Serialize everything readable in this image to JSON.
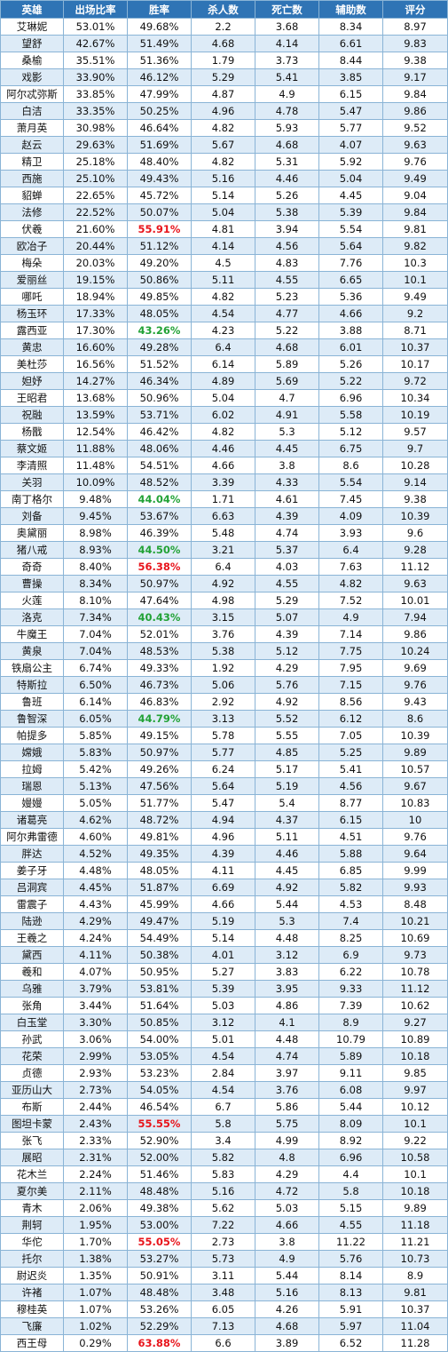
{
  "headers": [
    "英雄",
    "出场比率",
    "胜率",
    "杀人数",
    "死亡数",
    "辅助数",
    "评分"
  ],
  "colors": {
    "header_bg": "#2f74b5",
    "stripe": "#ddebf7",
    "high_winrate": "#e8141b",
    "low_winrate": "#22a236"
  },
  "rows": [
    {
      "cells": [
        "艾琳妮",
        "53.01%",
        "49.68%",
        "2.2",
        "3.68",
        "8.34",
        "8.97"
      ]
    },
    {
      "cells": [
        "望舒",
        "42.67%",
        "51.49%",
        "4.68",
        "4.14",
        "6.61",
        "9.83"
      ]
    },
    {
      "cells": [
        "桑榆",
        "35.51%",
        "51.36%",
        "1.79",
        "3.73",
        "8.44",
        "9.38"
      ]
    },
    {
      "cells": [
        "戏影",
        "33.90%",
        "46.12%",
        "5.29",
        "5.41",
        "3.85",
        "9.17"
      ]
    },
    {
      "cells": [
        "阿尔忒弥斯",
        "33.85%",
        "47.99%",
        "4.87",
        "4.9",
        "6.15",
        "9.84"
      ]
    },
    {
      "cells": [
        "白洁",
        "33.35%",
        "50.25%",
        "4.96",
        "4.78",
        "5.47",
        "9.86"
      ]
    },
    {
      "cells": [
        "萧月英",
        "30.98%",
        "46.64%",
        "4.82",
        "5.93",
        "5.77",
        "9.52"
      ]
    },
    {
      "cells": [
        "赵云",
        "29.63%",
        "51.69%",
        "5.67",
        "4.68",
        "4.07",
        "9.63"
      ]
    },
    {
      "cells": [
        "精卫",
        "25.18%",
        "48.40%",
        "4.82",
        "5.31",
        "5.92",
        "9.76"
      ]
    },
    {
      "cells": [
        "西施",
        "25.10%",
        "49.43%",
        "5.16",
        "4.46",
        "5.04",
        "9.49"
      ]
    },
    {
      "cells": [
        "貂蝉",
        "22.65%",
        "45.72%",
        "5.14",
        "5.26",
        "4.45",
        "9.04"
      ]
    },
    {
      "cells": [
        "法修",
        "22.52%",
        "50.07%",
        "5.04",
        "5.38",
        "5.39",
        "9.84"
      ]
    },
    {
      "cells": [
        "伏羲",
        "21.60%",
        "55.91%",
        "4.81",
        "3.94",
        "5.54",
        "9.81"
      ],
      "hl": "high"
    },
    {
      "cells": [
        "欧冶子",
        "20.44%",
        "51.12%",
        "4.14",
        "4.56",
        "5.64",
        "9.82"
      ]
    },
    {
      "cells": [
        "梅朵",
        "20.03%",
        "49.20%",
        "4.5",
        "4.83",
        "7.76",
        "10.3"
      ]
    },
    {
      "cells": [
        "爱丽丝",
        "19.15%",
        "50.86%",
        "5.11",
        "4.55",
        "6.65",
        "10.1"
      ]
    },
    {
      "cells": [
        "哪吒",
        "18.94%",
        "49.85%",
        "4.82",
        "5.23",
        "5.36",
        "9.49"
      ]
    },
    {
      "cells": [
        "杨玉环",
        "17.33%",
        "48.05%",
        "4.54",
        "4.77",
        "4.66",
        "9.2"
      ]
    },
    {
      "cells": [
        "露西亚",
        "17.30%",
        "43.26%",
        "4.23",
        "5.22",
        "3.88",
        "8.71"
      ],
      "hl": "low"
    },
    {
      "cells": [
        "黄忠",
        "16.60%",
        "49.28%",
        "6.4",
        "4.68",
        "6.01",
        "10.37"
      ]
    },
    {
      "cells": [
        "美杜莎",
        "16.56%",
        "51.52%",
        "6.14",
        "5.89",
        "5.26",
        "10.17"
      ]
    },
    {
      "cells": [
        "妲妤",
        "14.27%",
        "46.34%",
        "4.89",
        "5.69",
        "5.22",
        "9.72"
      ]
    },
    {
      "cells": [
        "王昭君",
        "13.68%",
        "50.96%",
        "5.04",
        "4.7",
        "6.96",
        "10.34"
      ]
    },
    {
      "cells": [
        "祝融",
        "13.59%",
        "53.71%",
        "6.02",
        "4.91",
        "5.58",
        "10.19"
      ]
    },
    {
      "cells": [
        "杨戬",
        "12.54%",
        "46.42%",
        "4.82",
        "5.3",
        "5.12",
        "9.57"
      ]
    },
    {
      "cells": [
        "蔡文姬",
        "11.88%",
        "48.06%",
        "4.46",
        "4.45",
        "6.75",
        "9.7"
      ]
    },
    {
      "cells": [
        "李清照",
        "11.48%",
        "54.51%",
        "4.66",
        "3.8",
        "8.6",
        "10.28"
      ]
    },
    {
      "cells": [
        "关羽",
        "10.09%",
        "48.52%",
        "3.39",
        "4.33",
        "5.54",
        "9.14"
      ]
    },
    {
      "cells": [
        "南丁格尔",
        "9.48%",
        "44.04%",
        "1.71",
        "4.61",
        "7.45",
        "9.38"
      ],
      "hl": "low"
    },
    {
      "cells": [
        "刘备",
        "9.45%",
        "53.67%",
        "6.63",
        "4.39",
        "4.09",
        "10.39"
      ]
    },
    {
      "cells": [
        "奥黛丽",
        "8.98%",
        "46.39%",
        "5.48",
        "4.74",
        "3.93",
        "9.6"
      ]
    },
    {
      "cells": [
        "猪八戒",
        "8.93%",
        "44.50%",
        "3.21",
        "5.37",
        "6.4",
        "9.28"
      ],
      "hl": "low"
    },
    {
      "cells": [
        "奇奇",
        "8.40%",
        "56.38%",
        "6.4",
        "4.03",
        "7.63",
        "11.12"
      ],
      "hl": "high"
    },
    {
      "cells": [
        "曹操",
        "8.34%",
        "50.97%",
        "4.92",
        "4.55",
        "4.82",
        "9.63"
      ]
    },
    {
      "cells": [
        "火莲",
        "8.10%",
        "47.64%",
        "4.98",
        "5.29",
        "7.52",
        "10.01"
      ]
    },
    {
      "cells": [
        "洛克",
        "7.34%",
        "40.43%",
        "3.15",
        "5.07",
        "4.9",
        "7.94"
      ],
      "hl": "low"
    },
    {
      "cells": [
        "牛魔王",
        "7.04%",
        "52.01%",
        "3.76",
        "4.39",
        "7.14",
        "9.86"
      ]
    },
    {
      "cells": [
        "黄泉",
        "7.04%",
        "48.53%",
        "5.38",
        "5.12",
        "7.75",
        "10.24"
      ]
    },
    {
      "cells": [
        "铁扇公主",
        "6.74%",
        "49.33%",
        "1.92",
        "4.29",
        "7.95",
        "9.69"
      ]
    },
    {
      "cells": [
        "特斯拉",
        "6.50%",
        "46.73%",
        "5.06",
        "5.76",
        "7.15",
        "9.76"
      ]
    },
    {
      "cells": [
        "鲁班",
        "6.14%",
        "46.83%",
        "2.92",
        "4.92",
        "8.56",
        "9.43"
      ]
    },
    {
      "cells": [
        "鲁智深",
        "6.05%",
        "44.79%",
        "3.13",
        "5.52",
        "6.12",
        "8.6"
      ],
      "hl": "low"
    },
    {
      "cells": [
        "帕提多",
        "5.85%",
        "49.15%",
        "5.78",
        "5.55",
        "7.05",
        "10.39"
      ]
    },
    {
      "cells": [
        "嫦娥",
        "5.83%",
        "50.97%",
        "5.77",
        "4.85",
        "5.25",
        "9.89"
      ]
    },
    {
      "cells": [
        "拉姆",
        "5.42%",
        "49.26%",
        "6.24",
        "5.17",
        "5.41",
        "10.57"
      ]
    },
    {
      "cells": [
        "瑞恩",
        "5.13%",
        "47.56%",
        "5.64",
        "5.19",
        "4.56",
        "9.67"
      ]
    },
    {
      "cells": [
        "嫚嫚",
        "5.05%",
        "51.77%",
        "5.47",
        "5.4",
        "8.77",
        "10.83"
      ]
    },
    {
      "cells": [
        "诸葛亮",
        "4.62%",
        "48.72%",
        "4.94",
        "4.37",
        "6.15",
        "10"
      ]
    },
    {
      "cells": [
        "阿尔弗雷德",
        "4.60%",
        "49.81%",
        "4.96",
        "5.11",
        "4.51",
        "9.76"
      ]
    },
    {
      "cells": [
        "胖达",
        "4.52%",
        "49.35%",
        "4.39",
        "4.46",
        "5.88",
        "9.64"
      ]
    },
    {
      "cells": [
        "姜子牙",
        "4.48%",
        "48.05%",
        "4.11",
        "4.45",
        "6.85",
        "9.99"
      ]
    },
    {
      "cells": [
        "吕洞宾",
        "4.45%",
        "51.87%",
        "6.69",
        "4.92",
        "5.82",
        "9.93"
      ]
    },
    {
      "cells": [
        "雷震子",
        "4.43%",
        "45.99%",
        "4.66",
        "5.44",
        "4.53",
        "8.48"
      ]
    },
    {
      "cells": [
        "陆逊",
        "4.29%",
        "49.47%",
        "5.19",
        "5.3",
        "7.4",
        "10.21"
      ]
    },
    {
      "cells": [
        "王羲之",
        "4.24%",
        "54.49%",
        "5.14",
        "4.48",
        "8.25",
        "10.69"
      ]
    },
    {
      "cells": [
        "黛西",
        "4.11%",
        "50.38%",
        "4.01",
        "3.12",
        "6.9",
        "9.73"
      ]
    },
    {
      "cells": [
        "羲和",
        "4.07%",
        "50.95%",
        "5.27",
        "3.83",
        "6.22",
        "10.78"
      ]
    },
    {
      "cells": [
        "乌雅",
        "3.79%",
        "53.81%",
        "5.39",
        "3.95",
        "9.33",
        "11.12"
      ]
    },
    {
      "cells": [
        "张角",
        "3.44%",
        "51.64%",
        "5.03",
        "4.86",
        "7.39",
        "10.62"
      ]
    },
    {
      "cells": [
        "白玉堂",
        "3.30%",
        "50.85%",
        "3.12",
        "4.1",
        "8.9",
        "9.27"
      ]
    },
    {
      "cells": [
        "孙武",
        "3.06%",
        "54.00%",
        "5.01",
        "4.48",
        "10.79",
        "10.89"
      ]
    },
    {
      "cells": [
        "花荣",
        "2.99%",
        "53.05%",
        "4.54",
        "4.74",
        "5.89",
        "10.18"
      ]
    },
    {
      "cells": [
        "贞德",
        "2.93%",
        "53.23%",
        "2.84",
        "3.97",
        "9.11",
        "9.85"
      ]
    },
    {
      "cells": [
        "亚历山大",
        "2.73%",
        "54.05%",
        "4.54",
        "3.76",
        "6.08",
        "9.97"
      ]
    },
    {
      "cells": [
        "布斯",
        "2.44%",
        "46.54%",
        "6.7",
        "5.86",
        "5.44",
        "10.12"
      ]
    },
    {
      "cells": [
        "图坦卡蒙",
        "2.43%",
        "55.55%",
        "5.8",
        "5.75",
        "8.09",
        "10.1"
      ],
      "hl": "high"
    },
    {
      "cells": [
        "张飞",
        "2.33%",
        "52.90%",
        "3.4",
        "4.99",
        "8.92",
        "9.22"
      ]
    },
    {
      "cells": [
        "展昭",
        "2.31%",
        "52.00%",
        "5.82",
        "4.8",
        "6.96",
        "10.58"
      ]
    },
    {
      "cells": [
        "花木兰",
        "2.24%",
        "51.46%",
        "5.83",
        "4.29",
        "4.4",
        "10.1"
      ]
    },
    {
      "cells": [
        "夏尔美",
        "2.11%",
        "48.48%",
        "5.16",
        "4.72",
        "5.8",
        "10.18"
      ]
    },
    {
      "cells": [
        "青木",
        "2.06%",
        "49.38%",
        "5.62",
        "5.03",
        "5.15",
        "9.89"
      ]
    },
    {
      "cells": [
        "荆轲",
        "1.95%",
        "53.00%",
        "7.22",
        "4.66",
        "4.55",
        "11.18"
      ]
    },
    {
      "cells": [
        "华佗",
        "1.70%",
        "55.05%",
        "2.73",
        "3.8",
        "11.22",
        "11.21"
      ],
      "hl": "high"
    },
    {
      "cells": [
        "托尔",
        "1.38%",
        "53.27%",
        "5.73",
        "4.9",
        "5.76",
        "10.73"
      ]
    },
    {
      "cells": [
        "尉迟炎",
        "1.35%",
        "50.91%",
        "3.11",
        "5.44",
        "8.14",
        "8.9"
      ]
    },
    {
      "cells": [
        "许褚",
        "1.07%",
        "48.48%",
        "3.48",
        "5.16",
        "8.13",
        "9.81"
      ]
    },
    {
      "cells": [
        "穆桂英",
        "1.07%",
        "53.26%",
        "6.05",
        "4.26",
        "5.91",
        "10.37"
      ]
    },
    {
      "cells": [
        "飞廉",
        "1.02%",
        "52.29%",
        "7.13",
        "4.68",
        "5.97",
        "11.04"
      ]
    },
    {
      "cells": [
        "西王母",
        "0.29%",
        "63.88%",
        "6.6",
        "3.89",
        "6.52",
        "11.28"
      ],
      "hl": "high"
    }
  ]
}
